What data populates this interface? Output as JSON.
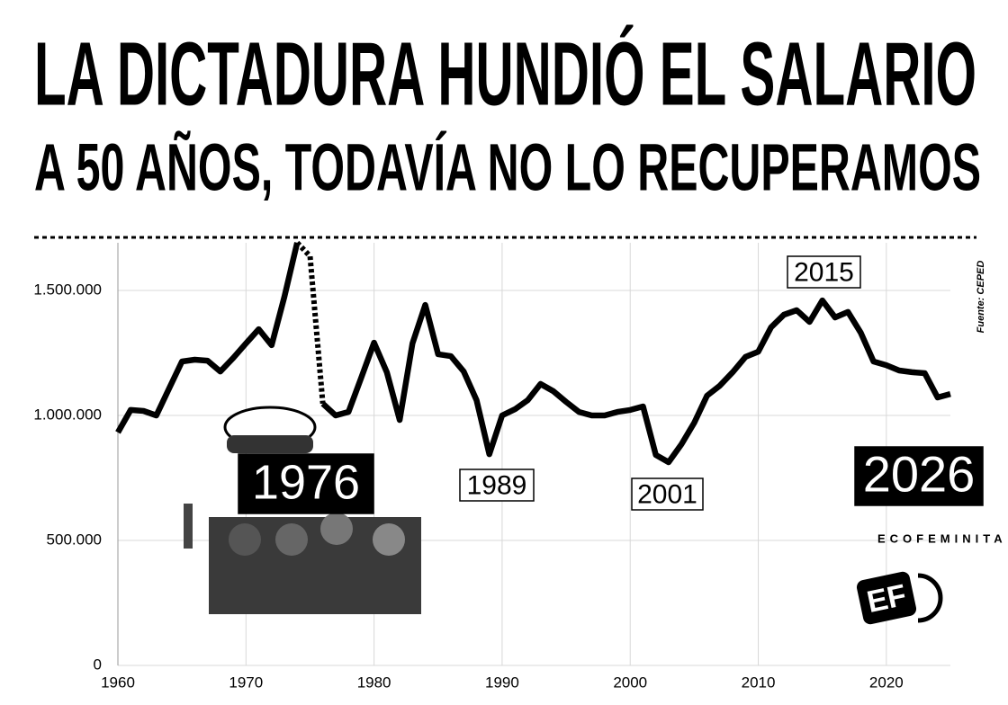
{
  "chart_data": {
    "type": "line",
    "title": "LA DICTADURA HUNDIÓ EL SALARIO",
    "subtitle": "A 50 AÑOS, TODAVÍA NO LO RECUPERAMOS",
    "source": "Fuente: CEPED",
    "brand": "ECOFEMINITA",
    "x": [
      1960,
      1961,
      1962,
      1963,
      1964,
      1965,
      1966,
      1967,
      1968,
      1969,
      1970,
      1971,
      1972,
      1973,
      1974,
      1975,
      1976,
      1977,
      1978,
      1979,
      1980,
      1981,
      1982,
      1983,
      1984,
      1985,
      1986,
      1987,
      1988,
      1989,
      1990,
      1991,
      1992,
      1993,
      1994,
      1995,
      1996,
      1997,
      1998,
      1999,
      2000,
      2001,
      2002,
      2003,
      2004,
      2005,
      2006,
      2007,
      2008,
      2009,
      2010,
      2011,
      2012,
      2013,
      2014,
      2015,
      2016,
      2017,
      2018,
      2019,
      2020,
      2021,
      2022,
      2023,
      2024,
      2025
    ],
    "values": [
      932000,
      1022000,
      1018000,
      1000000,
      1108000,
      1216000,
      1223000,
      1219000,
      1176000,
      1230000,
      1288000,
      1345000,
      1281000,
      1475000,
      1691000,
      1637000,
      1047000,
      1000000,
      1014000,
      1151000,
      1291000,
      1173000,
      982000,
      1288000,
      1442000,
      1245000,
      1237000,
      1176000,
      1061000,
      845000,
      1000000,
      1025000,
      1061000,
      1126000,
      1097000,
      1054000,
      1014000,
      1000000,
      1000000,
      1014000,
      1022000,
      1036000,
      842000,
      813000,
      885000,
      971000,
      1079000,
      1119000,
      1173000,
      1234000,
      1255000,
      1353000,
      1403000,
      1421000,
      1374000,
      1460000,
      1392000,
      1414000,
      1331000,
      1216000,
      1201000,
      1180000,
      1173000,
      1169000,
      1072000,
      1086000
    ],
    "color": "#000000",
    "dashed_between": [
      1974,
      1976
    ],
    "xlim": [
      1960,
      2025
    ],
    "xticks": [
      1960,
      1970,
      1980,
      1990,
      2000,
      2010,
      2020
    ],
    "ylim": [
      0,
      1700000
    ],
    "yticks": [
      {
        "value": 0,
        "label": "0"
      },
      {
        "value": 500000,
        "label": "500.000"
      },
      {
        "value": 1000000,
        "label": "1.000.000"
      },
      {
        "value": 1500000,
        "label": "1.500.000"
      }
    ],
    "grid": true,
    "annotations": [
      {
        "text": "1976"
      },
      {
        "text": "1989"
      },
      {
        "text": "2001"
      },
      {
        "text": "2015"
      },
      {
        "text": "2026"
      }
    ]
  }
}
